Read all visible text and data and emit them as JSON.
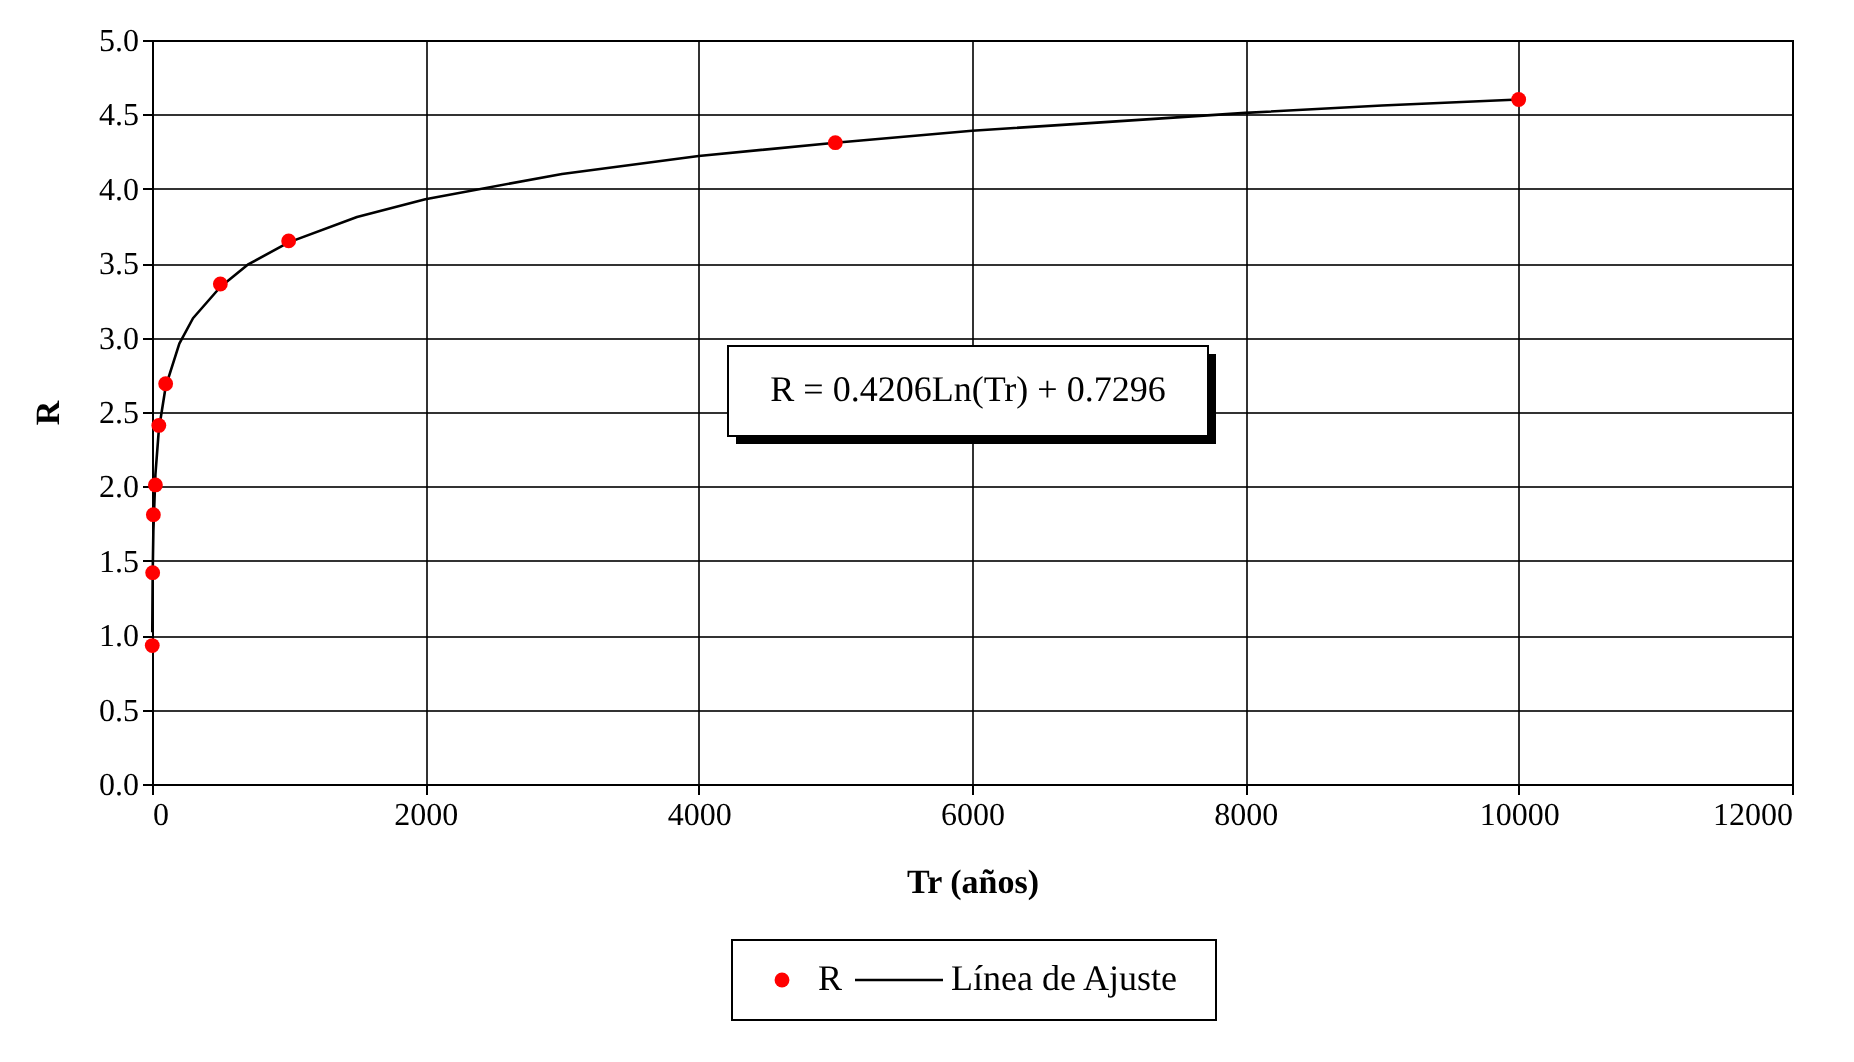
{
  "chart_data": {
    "type": "scatter",
    "xlabel": "Tr  (años)",
    "ylabel": "R",
    "annotations": [
      "R = 0.4206Ln(Tr) + 0.7296"
    ],
    "series": [
      {
        "name": "R",
        "type": "scatter",
        "color": "#ff0000",
        "marker": "circle",
        "x": [
          2,
          5,
          10,
          25,
          50,
          100,
          500,
          1000,
          5000,
          10000
        ],
        "values": [
          0.93,
          1.42,
          1.81,
          2.01,
          2.41,
          2.69,
          3.36,
          3.65,
          4.31,
          4.6
        ]
      },
      {
        "name": "Línea de Ajuste",
        "type": "line",
        "color": "#000000",
        "line_style": "solid",
        "x": [
          2,
          5,
          10,
          25,
          50,
          100,
          200,
          300,
          500,
          700,
          1000,
          1500,
          2000,
          3000,
          4000,
          5000,
          6000,
          7000,
          8000,
          9000,
          10000
        ],
        "values": [
          1.02,
          1.41,
          1.7,
          2.08,
          2.38,
          2.67,
          2.96,
          3.13,
          3.34,
          3.49,
          3.64,
          3.81,
          3.93,
          4.1,
          4.22,
          4.31,
          4.39,
          4.45,
          4.51,
          4.56,
          4.6
        ]
      }
    ],
    "xlim": [
      0,
      12000
    ],
    "xticks": [
      0,
      2000,
      4000,
      6000,
      8000,
      10000,
      12000
    ],
    "ylim": [
      0,
      5
    ],
    "yticks": [
      {
        "value": 0,
        "label": "0.0"
      },
      {
        "value": 0.5,
        "label": "0.5"
      },
      {
        "value": 1,
        "label": "1.0"
      },
      {
        "value": 1.5,
        "label": "1.5"
      },
      {
        "value": 2,
        "label": "2.0"
      },
      {
        "value": 2.5,
        "label": "2.5"
      },
      {
        "value": 3,
        "label": "3.0"
      },
      {
        "value": 3.5,
        "label": "3.5"
      },
      {
        "value": 4,
        "label": "4.0"
      },
      {
        "value": 4.5,
        "label": "4.5"
      },
      {
        "value": 5,
        "label": "5.0"
      }
    ],
    "grid": true,
    "legend": "bottom"
  }
}
